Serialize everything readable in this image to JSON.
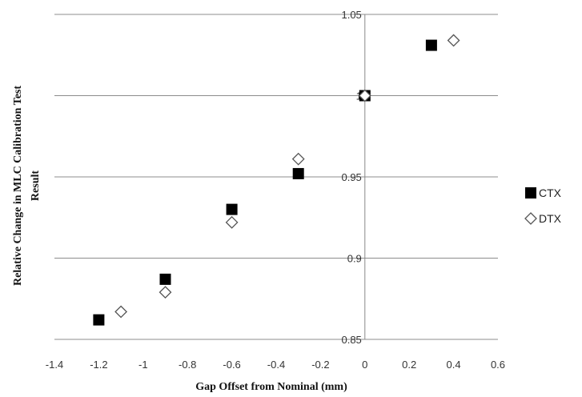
{
  "chart_data": {
    "type": "scatter",
    "xlabel": "Gap  Offset from Nominal  (mm)",
    "ylabel_lines": [
      "Relative  Change  in MLC  Calibration  Test",
      "Result"
    ],
    "xlim": [
      -1.4,
      0.6
    ],
    "ylim": [
      0.85,
      1.05
    ],
    "x_ticks": [
      -1.4,
      -1.2,
      -1,
      -0.8,
      -0.6,
      -0.4,
      -0.2,
      0,
      0.2,
      0.4,
      0.6
    ],
    "x_tick_labels": [
      "-1.4",
      "-1.2",
      "-1",
      "-0.8",
      "-0.6",
      "-0.4",
      "-0.2",
      "0",
      "0.2",
      "0.4",
      "0.6"
    ],
    "y_ticks": [
      0.85,
      0.9,
      0.95,
      1,
      1.05
    ],
    "y_tick_labels": [
      "0.85",
      "0.9",
      "0.95",
      "1",
      "1.05"
    ],
    "grid": "horizontal",
    "legend_position": "right",
    "series": [
      {
        "name": "CTX",
        "marker": "square-filled",
        "color": "#000000",
        "points": [
          {
            "x": -1.2,
            "y": 0.862
          },
          {
            "x": -0.9,
            "y": 0.887
          },
          {
            "x": -0.6,
            "y": 0.93
          },
          {
            "x": -0.3,
            "y": 0.952
          },
          {
            "x": 0,
            "y": 1.0
          },
          {
            "x": 0.3,
            "y": 1.031
          }
        ]
      },
      {
        "name": "DTX",
        "marker": "diamond-open",
        "color": "#555555",
        "points": [
          {
            "x": -1.1,
            "y": 0.867
          },
          {
            "x": -0.9,
            "y": 0.879
          },
          {
            "x": -0.6,
            "y": 0.922
          },
          {
            "x": -0.3,
            "y": 0.961
          },
          {
            "x": 0,
            "y": 1.0
          },
          {
            "x": 0.4,
            "y": 1.034
          }
        ]
      }
    ]
  }
}
